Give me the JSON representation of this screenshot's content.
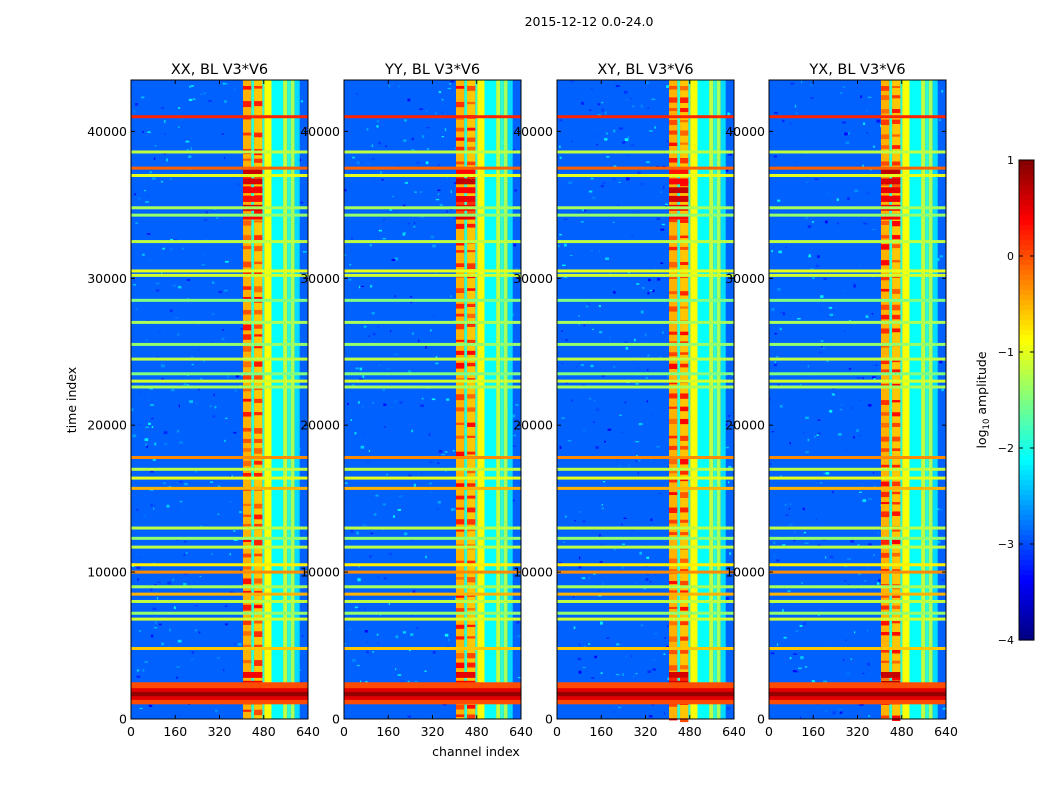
{
  "figure_title": "2015-12-12 0.0-24.0",
  "chart_data": {
    "type": "heatmap",
    "suptitle": "2015-12-12 0.0-24.0",
    "xlabel": "channel index",
    "ylabel": "time index",
    "xlim": [
      0,
      640
    ],
    "ylim": [
      0,
      43500
    ],
    "xticks": [
      0,
      160,
      320,
      480,
      640
    ],
    "yticks": [
      0,
      10000,
      20000,
      30000,
      40000
    ],
    "colorbar": {
      "label": "log",
      "label_sub": "10",
      "label_rest": " amplitude",
      "range": [
        -4,
        1
      ],
      "ticks": [
        1,
        0,
        -1,
        -2,
        -3,
        -4
      ],
      "tick_labels": [
        "1",
        "0",
        "−1",
        "−2",
        "−3",
        "−4"
      ],
      "colormap": "jet"
    },
    "panels": [
      {
        "title": "XX, BL V3*V6",
        "polarization": "XX",
        "baseline": "V3*V6"
      },
      {
        "title": "YY, BL V3*V6",
        "polarization": "YY",
        "baseline": "V3*V6"
      },
      {
        "title": "XY, BL V3*V6",
        "polarization": "XY",
        "baseline": "V3*V6"
      },
      {
        "title": "YX, BL V3*V6",
        "polarization": "YX",
        "baseline": "V3*V6"
      }
    ],
    "background_level": -2.9,
    "rfi_channel_bands": [
      {
        "range": [
          405,
          435
        ],
        "level": -0.5
      },
      {
        "range": [
          435,
          445
        ],
        "level": -1.9
      },
      {
        "range": [
          445,
          475
        ],
        "level": -0.6
      },
      {
        "range": [
          475,
          482
        ],
        "level": -1.9
      },
      {
        "range": [
          482,
          508
        ],
        "level": -0.9
      },
      {
        "range": [
          508,
          550
        ],
        "level": -2.1
      },
      {
        "range": [
          550,
          565
        ],
        "level": -1.2
      },
      {
        "range": [
          565,
          578
        ],
        "level": -1.9
      },
      {
        "range": [
          578,
          592
        ],
        "level": -1.3
      },
      {
        "range": [
          592,
          610
        ],
        "level": -2.3
      }
    ],
    "rfi_time_rows": [
      {
        "time": 41000,
        "level": 0.2
      },
      {
        "time": 38600,
        "level": -1.2
      },
      {
        "time": 37500,
        "level": -0.1
      },
      {
        "time": 37000,
        "level": -1.0
      },
      {
        "time": 34800,
        "level": -1.3
      },
      {
        "time": 34300,
        "level": -1.4
      },
      {
        "time": 32500,
        "level": -1.2
      },
      {
        "time": 30500,
        "level": -1.0
      },
      {
        "time": 30200,
        "level": -1.1
      },
      {
        "time": 28500,
        "level": -1.5
      },
      {
        "time": 27000,
        "level": -1.3
      },
      {
        "time": 25500,
        "level": -1.4
      },
      {
        "time": 24500,
        "level": -1.2
      },
      {
        "time": 23500,
        "level": -1.5
      },
      {
        "time": 23000,
        "level": -1.1
      },
      {
        "time": 22600,
        "level": -1.3
      },
      {
        "time": 17800,
        "level": -0.3
      },
      {
        "time": 17000,
        "level": -1.2
      },
      {
        "time": 16400,
        "level": -1.0
      },
      {
        "time": 15700,
        "level": -0.5
      },
      {
        "time": 13000,
        "level": -1.2
      },
      {
        "time": 12300,
        "level": -1.4
      },
      {
        "time": 11700,
        "level": -1.2
      },
      {
        "time": 10500,
        "level": -0.8
      },
      {
        "time": 10000,
        "level": -0.3
      },
      {
        "time": 9000,
        "level": -1.3
      },
      {
        "time": 8500,
        "level": -0.5
      },
      {
        "time": 8000,
        "level": -1.2
      },
      {
        "time": 7200,
        "level": -1.4
      },
      {
        "time": 6800,
        "level": -1.1
      },
      {
        "time": 4800,
        "level": -0.6
      }
    ],
    "burst": {
      "time_range": [
        1000,
        2500
      ],
      "center": 1700,
      "peak_level": 0.9
    },
    "hot_spots": [
      {
        "channels": [
          405,
          475
        ],
        "time_range": [
          34000,
          37500
        ],
        "level": 0.7
      },
      {
        "channels": [
          405,
          475
        ],
        "time_range": [
          1000,
          3000
        ],
        "level": 0.8
      }
    ]
  }
}
